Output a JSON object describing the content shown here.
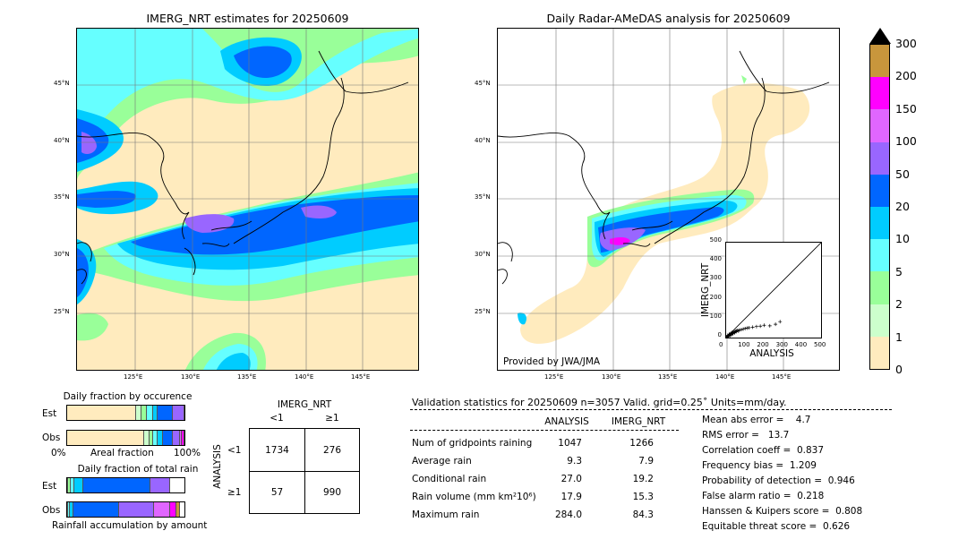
{
  "left_panel": {
    "title": "IMERG_NRT estimates for 20250609",
    "lat_labels": [
      "45°N",
      "40°N",
      "35°N",
      "30°N",
      "25°N"
    ],
    "lon_labels": [
      "125°E",
      "130°E",
      "135°E",
      "140°E",
      "145°E"
    ]
  },
  "right_panel": {
    "title": "Daily Radar-AMeDAS analysis for 20250609",
    "lat_labels": [
      "45°N",
      "40°N",
      "35°N",
      "30°N",
      "25°N"
    ],
    "lon_labels": [
      "125°E",
      "130°E",
      "135°E",
      "140°E",
      "145°E"
    ],
    "credit": "Provided by JWA/JMA"
  },
  "colorbar": {
    "labels": [
      "300",
      "200",
      "150",
      "100",
      "50",
      "20",
      "10",
      "5",
      "2",
      "1",
      "0"
    ],
    "colors": [
      "#c8963c",
      "#ff00ff",
      "#e066ff",
      "#9966ff",
      "#0066ff",
      "#00ccff",
      "#66ffff",
      "#99ff99",
      "#ccffcc",
      "#ffebbe"
    ]
  },
  "occurrence": {
    "title": "Daily fraction by occurence",
    "est_label": "Est",
    "obs_label": "Obs",
    "axis_left": "0%",
    "axis_mid": "Areal fraction",
    "axis_right": "100%"
  },
  "total_rain": {
    "title": "Daily fraction of total rain",
    "est_label": "Est",
    "obs_label": "Obs",
    "axis_caption": "Rainfall accumulation by amount"
  },
  "contingency": {
    "col_header": "IMERG_NRT",
    "col_lt": "<1",
    "col_ge": "≥1",
    "row_header": "ANALYSIS",
    "row_lt": "<1",
    "row_ge": "≥1",
    "a": "1734",
    "b": "276",
    "c": "57",
    "d": "990"
  },
  "validation": {
    "header": "Validation statistics for 20250609  n=3057 Valid. grid=0.25˚ Units=mm/day.",
    "col_analysis": "ANALYSIS",
    "col_imerg": "IMERG_NRT",
    "rows": [
      {
        "label": "Num of gridpoints raining",
        "analysis": "1047",
        "imerg": "1266"
      },
      {
        "label": "Average rain",
        "analysis": "9.3",
        "imerg": "7.9"
      },
      {
        "label": "Conditional rain",
        "analysis": "27.0",
        "imerg": "19.2"
      },
      {
        "label": "Rain volume (mm km²10⁶)",
        "analysis": "17.9",
        "imerg": "15.3"
      },
      {
        "label": "Maximum rain",
        "analysis": "284.0",
        "imerg": "84.3"
      }
    ],
    "scores": [
      "Mean abs error =    4.7",
      "RMS error =   13.7",
      "Correlation coeff =  0.837",
      "Frequency bias =  1.209",
      "Probability of detection =  0.946",
      "False alarm ratio =  0.218",
      "Hanssen & Kuipers score =  0.808",
      "Equitable threat score =  0.626"
    ]
  },
  "chart_data": [
    {
      "type": "scatter",
      "title": "",
      "xlabel": "ANALYSIS",
      "ylabel": "IMERG_NRT",
      "xlim": [
        0,
        500
      ],
      "ylim": [
        0,
        500
      ],
      "xticks": [
        "0",
        "100",
        "200",
        "300",
        "400",
        "500"
      ],
      "yticks": [
        "0",
        "100",
        "200",
        "300",
        "400",
        "500"
      ],
      "x": [
        3,
        6,
        10,
        14,
        18,
        22,
        26,
        30,
        35,
        40,
        45,
        50,
        55,
        60,
        65,
        70,
        80,
        90,
        100,
        110,
        120,
        140,
        160,
        180,
        200,
        230,
        260,
        284,
        12,
        20,
        28,
        36,
        44,
        52,
        8,
        16,
        24,
        32
      ],
      "y": [
        2,
        5,
        8,
        12,
        14,
        18,
        20,
        22,
        26,
        28,
        30,
        33,
        35,
        38,
        34,
        40,
        42,
        45,
        48,
        50,
        52,
        55,
        58,
        60,
        65,
        62,
        70,
        84,
        6,
        10,
        15,
        20,
        25,
        30,
        12,
        18,
        22,
        28
      ]
    },
    {
      "type": "bar",
      "title": "Daily fraction by occurence",
      "xlabel": "Areal fraction",
      "categories": [
        "Est",
        "Obs"
      ],
      "series": [
        {
          "name": "0",
          "values": [
            0.59,
            0.66
          ]
        },
        {
          "name": "1",
          "values": [
            0.04,
            0.04
          ]
        },
        {
          "name": "2",
          "values": [
            0.05,
            0.03
          ]
        },
        {
          "name": "5",
          "values": [
            0.05,
            0.04
          ]
        },
        {
          "name": "10",
          "values": [
            0.04,
            0.05
          ]
        },
        {
          "name": "20",
          "values": [
            0.13,
            0.08
          ]
        },
        {
          "name": "50",
          "values": [
            0.1,
            0.06
          ]
        },
        {
          "name": "100",
          "values": [
            0.0,
            0.02
          ]
        },
        {
          "name": "150",
          "values": [
            0.0,
            0.02
          ]
        }
      ]
    },
    {
      "type": "bar",
      "title": "Daily fraction of total rain",
      "xlabel": "Rainfall accumulation by amount",
      "categories": [
        "Est",
        "Obs"
      ],
      "series": [
        {
          "name": "1",
          "values": [
            0.01,
            0.0
          ]
        },
        {
          "name": "2",
          "values": [
            0.02,
            0.01
          ]
        },
        {
          "name": "5",
          "values": [
            0.03,
            0.01
          ]
        },
        {
          "name": "10",
          "values": [
            0.08,
            0.03
          ]
        },
        {
          "name": "20",
          "values": [
            0.57,
            0.39
          ]
        },
        {
          "name": "50",
          "values": [
            0.17,
            0.3
          ]
        },
        {
          "name": "100",
          "values": [
            0.0,
            0.14
          ]
        },
        {
          "name": "150",
          "values": [
            0.0,
            0.05
          ]
        },
        {
          "name": "200",
          "values": [
            0.0,
            0.03
          ]
        }
      ]
    }
  ]
}
